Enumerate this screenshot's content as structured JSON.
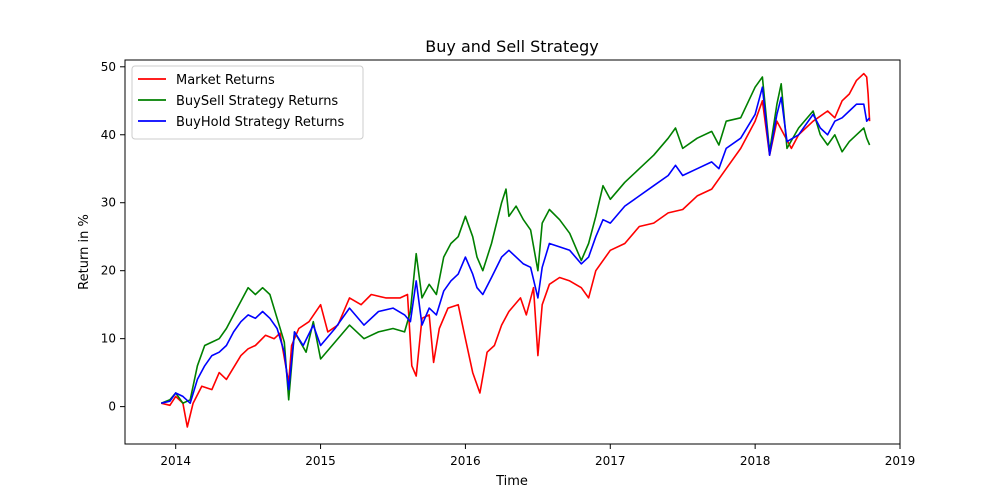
{
  "chart_data": {
    "type": "line",
    "title": "Buy and Sell Strategy",
    "xlabel": "Time",
    "ylabel": "Return in %",
    "xlim": [
      2013.65,
      2019.0
    ],
    "ylim": [
      -5.5,
      51
    ],
    "x_ticks": [
      {
        "value": 2014,
        "label": "2014"
      },
      {
        "value": 2015,
        "label": "2015"
      },
      {
        "value": 2016,
        "label": "2016"
      },
      {
        "value": 2017,
        "label": "2017"
      },
      {
        "value": 2018,
        "label": "2018"
      },
      {
        "value": 2019,
        "label": "2019"
      }
    ],
    "y_ticks": [
      {
        "value": 0,
        "label": "0"
      },
      {
        "value": 10,
        "label": "10"
      },
      {
        "value": 20,
        "label": "20"
      },
      {
        "value": 30,
        "label": "30"
      },
      {
        "value": 40,
        "label": "40"
      },
      {
        "value": 50,
        "label": "50"
      }
    ],
    "grid": false,
    "legend_position": "top-left",
    "series": [
      {
        "name": "Market Returns",
        "color": "#ff0000",
        "points": [
          [
            2013.9,
            0.5
          ],
          [
            2013.96,
            0.2
          ],
          [
            2014.0,
            1.5
          ],
          [
            2014.05,
            0.5
          ],
          [
            2014.08,
            -3.0
          ],
          [
            2014.12,
            0.5
          ],
          [
            2014.18,
            3.0
          ],
          [
            2014.25,
            2.5
          ],
          [
            2014.3,
            5.0
          ],
          [
            2014.35,
            4.0
          ],
          [
            2014.45,
            7.5
          ],
          [
            2014.5,
            8.5
          ],
          [
            2014.55,
            9.0
          ],
          [
            2014.62,
            10.5
          ],
          [
            2014.68,
            10.0
          ],
          [
            2014.72,
            10.8
          ],
          [
            2014.78,
            3.5
          ],
          [
            2014.8,
            9.0
          ],
          [
            2014.85,
            11.5
          ],
          [
            2014.92,
            12.5
          ],
          [
            2015.0,
            15.0
          ],
          [
            2015.05,
            11.0
          ],
          [
            2015.12,
            12.0
          ],
          [
            2015.2,
            16.0
          ],
          [
            2015.28,
            15.0
          ],
          [
            2015.35,
            16.5
          ],
          [
            2015.45,
            16.0
          ],
          [
            2015.55,
            16.0
          ],
          [
            2015.6,
            16.5
          ],
          [
            2015.63,
            6.0
          ],
          [
            2015.66,
            4.5
          ],
          [
            2015.7,
            13.0
          ],
          [
            2015.75,
            13.5
          ],
          [
            2015.78,
            6.5
          ],
          [
            2015.82,
            11.5
          ],
          [
            2015.88,
            14.5
          ],
          [
            2015.95,
            15.0
          ],
          [
            2016.0,
            10.0
          ],
          [
            2016.05,
            5.0
          ],
          [
            2016.1,
            2.0
          ],
          [
            2016.15,
            8.0
          ],
          [
            2016.2,
            9.0
          ],
          [
            2016.25,
            12.0
          ],
          [
            2016.3,
            14.0
          ],
          [
            2016.38,
            16.0
          ],
          [
            2016.42,
            13.5
          ],
          [
            2016.47,
            17.5
          ],
          [
            2016.5,
            7.5
          ],
          [
            2016.53,
            15.0
          ],
          [
            2016.58,
            18.0
          ],
          [
            2016.65,
            19.0
          ],
          [
            2016.72,
            18.5
          ],
          [
            2016.8,
            17.5
          ],
          [
            2016.85,
            16.0
          ],
          [
            2016.9,
            20.0
          ],
          [
            2017.0,
            23.0
          ],
          [
            2017.1,
            24.0
          ],
          [
            2017.2,
            26.5
          ],
          [
            2017.3,
            27.0
          ],
          [
            2017.4,
            28.5
          ],
          [
            2017.5,
            29.0
          ],
          [
            2017.6,
            31.0
          ],
          [
            2017.7,
            32.0
          ],
          [
            2017.8,
            35.0
          ],
          [
            2017.9,
            38.0
          ],
          [
            2018.0,
            42.0
          ],
          [
            2018.05,
            45.0
          ],
          [
            2018.1,
            37.0
          ],
          [
            2018.15,
            42.0
          ],
          [
            2018.2,
            40.0
          ],
          [
            2018.25,
            38.0
          ],
          [
            2018.3,
            40.0
          ],
          [
            2018.4,
            42.0
          ],
          [
            2018.5,
            43.5
          ],
          [
            2018.55,
            42.5
          ],
          [
            2018.6,
            45.0
          ],
          [
            2018.65,
            46.0
          ],
          [
            2018.7,
            48.0
          ],
          [
            2018.75,
            49.0
          ],
          [
            2018.77,
            48.5
          ],
          [
            2018.78,
            46.0
          ],
          [
            2018.79,
            42.0
          ]
        ]
      },
      {
        "name": "BuySell Strategy Returns",
        "color": "#008000",
        "points": [
          [
            2013.9,
            0.5
          ],
          [
            2013.96,
            1.0
          ],
          [
            2014.0,
            2.0
          ],
          [
            2014.05,
            0.5
          ],
          [
            2014.1,
            1.0
          ],
          [
            2014.15,
            6.0
          ],
          [
            2014.2,
            9.0
          ],
          [
            2014.25,
            9.5
          ],
          [
            2014.3,
            10.0
          ],
          [
            2014.35,
            11.5
          ],
          [
            2014.4,
            13.5
          ],
          [
            2014.45,
            15.5
          ],
          [
            2014.5,
            17.5
          ],
          [
            2014.55,
            16.5
          ],
          [
            2014.6,
            17.5
          ],
          [
            2014.65,
            16.5
          ],
          [
            2014.7,
            13.0
          ],
          [
            2014.75,
            9.5
          ],
          [
            2014.78,
            1.0
          ],
          [
            2014.82,
            11.0
          ],
          [
            2014.9,
            8.0
          ],
          [
            2014.95,
            12.5
          ],
          [
            2015.0,
            7.0
          ],
          [
            2015.1,
            9.5
          ],
          [
            2015.2,
            12.0
          ],
          [
            2015.3,
            10.0
          ],
          [
            2015.4,
            11.0
          ],
          [
            2015.5,
            11.5
          ],
          [
            2015.58,
            11.0
          ],
          [
            2015.62,
            14.0
          ],
          [
            2015.66,
            22.5
          ],
          [
            2015.7,
            16.0
          ],
          [
            2015.75,
            18.0
          ],
          [
            2015.8,
            16.5
          ],
          [
            2015.85,
            22.0
          ],
          [
            2015.9,
            24.0
          ],
          [
            2015.95,
            25.0
          ],
          [
            2016.0,
            28.0
          ],
          [
            2016.05,
            25.0
          ],
          [
            2016.08,
            22.0
          ],
          [
            2016.12,
            20.0
          ],
          [
            2016.18,
            24.0
          ],
          [
            2016.25,
            30.0
          ],
          [
            2016.28,
            32.0
          ],
          [
            2016.3,
            28.0
          ],
          [
            2016.35,
            29.5
          ],
          [
            2016.4,
            27.5
          ],
          [
            2016.45,
            26.0
          ],
          [
            2016.5,
            20.0
          ],
          [
            2016.53,
            27.0
          ],
          [
            2016.58,
            29.0
          ],
          [
            2016.65,
            27.5
          ],
          [
            2016.72,
            25.5
          ],
          [
            2016.8,
            21.5
          ],
          [
            2016.85,
            24.0
          ],
          [
            2016.9,
            28.0
          ],
          [
            2016.95,
            32.5
          ],
          [
            2017.0,
            30.5
          ],
          [
            2017.1,
            33.0
          ],
          [
            2017.2,
            35.0
          ],
          [
            2017.3,
            37.0
          ],
          [
            2017.4,
            39.5
          ],
          [
            2017.45,
            41.0
          ],
          [
            2017.5,
            38.0
          ],
          [
            2017.6,
            39.5
          ],
          [
            2017.7,
            40.5
          ],
          [
            2017.75,
            38.5
          ],
          [
            2017.8,
            42.0
          ],
          [
            2017.9,
            42.5
          ],
          [
            2018.0,
            47.0
          ],
          [
            2018.05,
            48.5
          ],
          [
            2018.1,
            37.5
          ],
          [
            2018.15,
            44.5
          ],
          [
            2018.18,
            47.5
          ],
          [
            2018.22,
            38.0
          ],
          [
            2018.3,
            41.0
          ],
          [
            2018.4,
            43.5
          ],
          [
            2018.45,
            40.0
          ],
          [
            2018.5,
            38.5
          ],
          [
            2018.55,
            40.0
          ],
          [
            2018.6,
            37.5
          ],
          [
            2018.65,
            39.0
          ],
          [
            2018.7,
            40.0
          ],
          [
            2018.75,
            41.0
          ],
          [
            2018.77,
            39.5
          ],
          [
            2018.79,
            38.5
          ]
        ]
      },
      {
        "name": "BuyHold Strategy Returns",
        "color": "#0000ff",
        "points": [
          [
            2013.9,
            0.5
          ],
          [
            2013.96,
            0.8
          ],
          [
            2014.0,
            2.0
          ],
          [
            2014.05,
            1.5
          ],
          [
            2014.1,
            0.5
          ],
          [
            2014.15,
            4.0
          ],
          [
            2014.2,
            6.0
          ],
          [
            2014.25,
            7.5
          ],
          [
            2014.3,
            8.0
          ],
          [
            2014.35,
            9.0
          ],
          [
            2014.4,
            11.0
          ],
          [
            2014.45,
            12.5
          ],
          [
            2014.5,
            13.5
          ],
          [
            2014.55,
            13.0
          ],
          [
            2014.6,
            14.0
          ],
          [
            2014.65,
            13.0
          ],
          [
            2014.7,
            11.5
          ],
          [
            2014.75,
            8.0
          ],
          [
            2014.78,
            2.5
          ],
          [
            2014.82,
            11.0
          ],
          [
            2014.88,
            9.0
          ],
          [
            2014.95,
            12.0
          ],
          [
            2015.0,
            9.0
          ],
          [
            2015.1,
            11.5
          ],
          [
            2015.2,
            14.5
          ],
          [
            2015.3,
            12.0
          ],
          [
            2015.4,
            14.0
          ],
          [
            2015.5,
            14.5
          ],
          [
            2015.58,
            13.5
          ],
          [
            2015.62,
            12.5
          ],
          [
            2015.66,
            18.5
          ],
          [
            2015.7,
            12.0
          ],
          [
            2015.75,
            14.5
          ],
          [
            2015.8,
            13.5
          ],
          [
            2015.85,
            17.0
          ],
          [
            2015.9,
            18.5
          ],
          [
            2015.95,
            19.5
          ],
          [
            2016.0,
            22.0
          ],
          [
            2016.05,
            19.5
          ],
          [
            2016.08,
            17.5
          ],
          [
            2016.12,
            16.5
          ],
          [
            2016.18,
            19.0
          ],
          [
            2016.25,
            22.0
          ],
          [
            2016.3,
            23.0
          ],
          [
            2016.35,
            22.0
          ],
          [
            2016.4,
            21.0
          ],
          [
            2016.45,
            20.5
          ],
          [
            2016.5,
            16.0
          ],
          [
            2016.53,
            20.5
          ],
          [
            2016.58,
            24.0
          ],
          [
            2016.65,
            23.5
          ],
          [
            2016.72,
            23.0
          ],
          [
            2016.8,
            21.0
          ],
          [
            2016.85,
            22.0
          ],
          [
            2016.9,
            25.0
          ],
          [
            2016.95,
            27.5
          ],
          [
            2017.0,
            27.0
          ],
          [
            2017.1,
            29.5
          ],
          [
            2017.2,
            31.0
          ],
          [
            2017.3,
            32.5
          ],
          [
            2017.4,
            34.0
          ],
          [
            2017.45,
            35.5
          ],
          [
            2017.5,
            34.0
          ],
          [
            2017.6,
            35.0
          ],
          [
            2017.7,
            36.0
          ],
          [
            2017.75,
            35.0
          ],
          [
            2017.8,
            38.0
          ],
          [
            2017.9,
            39.5
          ],
          [
            2018.0,
            43.0
          ],
          [
            2018.05,
            47.0
          ],
          [
            2018.1,
            37.0
          ],
          [
            2018.15,
            43.0
          ],
          [
            2018.18,
            45.5
          ],
          [
            2018.22,
            39.0
          ],
          [
            2018.3,
            40.0
          ],
          [
            2018.4,
            43.0
          ],
          [
            2018.45,
            41.0
          ],
          [
            2018.5,
            40.0
          ],
          [
            2018.55,
            42.0
          ],
          [
            2018.6,
            42.5
          ],
          [
            2018.65,
            43.5
          ],
          [
            2018.7,
            44.5
          ],
          [
            2018.75,
            44.5
          ],
          [
            2018.77,
            42.0
          ],
          [
            2018.79,
            42.5
          ]
        ]
      }
    ]
  }
}
